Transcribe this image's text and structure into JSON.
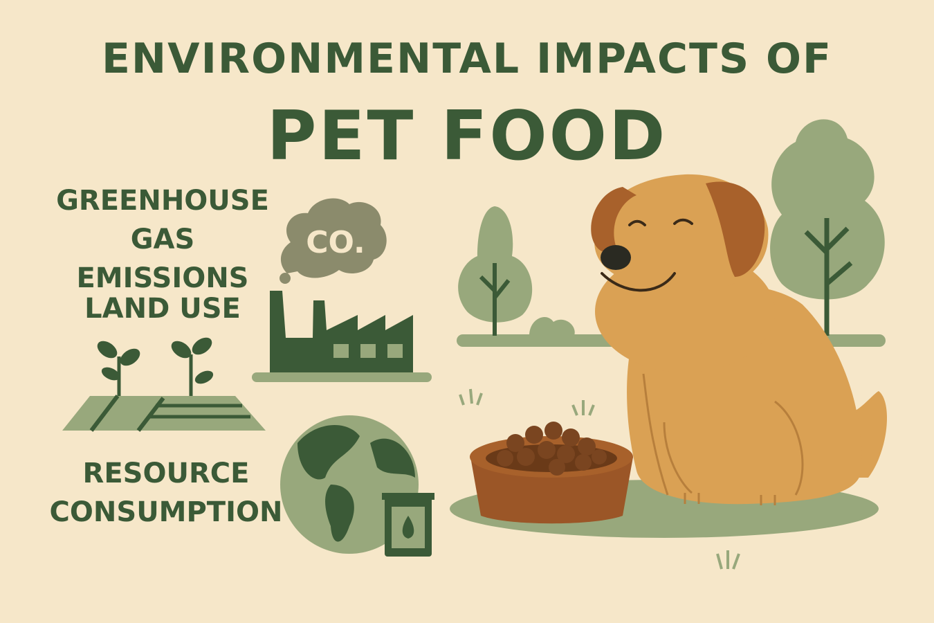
{
  "title": {
    "line1": "ENVIRONMENTAL IMPACTS OF",
    "line2": "PET FOOD"
  },
  "impacts": [
    {
      "label_line1": "GREENHOUSE",
      "label_line2": "GAS EMISSIONS",
      "icon": "factory-icon"
    },
    {
      "label_line1": "LAND USE",
      "icon": "farmland-sprouts-icon"
    },
    {
      "label_line1": "RESOURCE",
      "label_line2": "CONSUMPTION",
      "icon": "globe-and-can-icon"
    }
  ],
  "cloud_text": "CO.",
  "colors": {
    "background": "#f6e7c9",
    "dark_green": "#3b5a37",
    "light_green": "#98a87c",
    "dog": "#daa154",
    "dog_ear": "#a8612b",
    "bowl": "#9b5627"
  }
}
